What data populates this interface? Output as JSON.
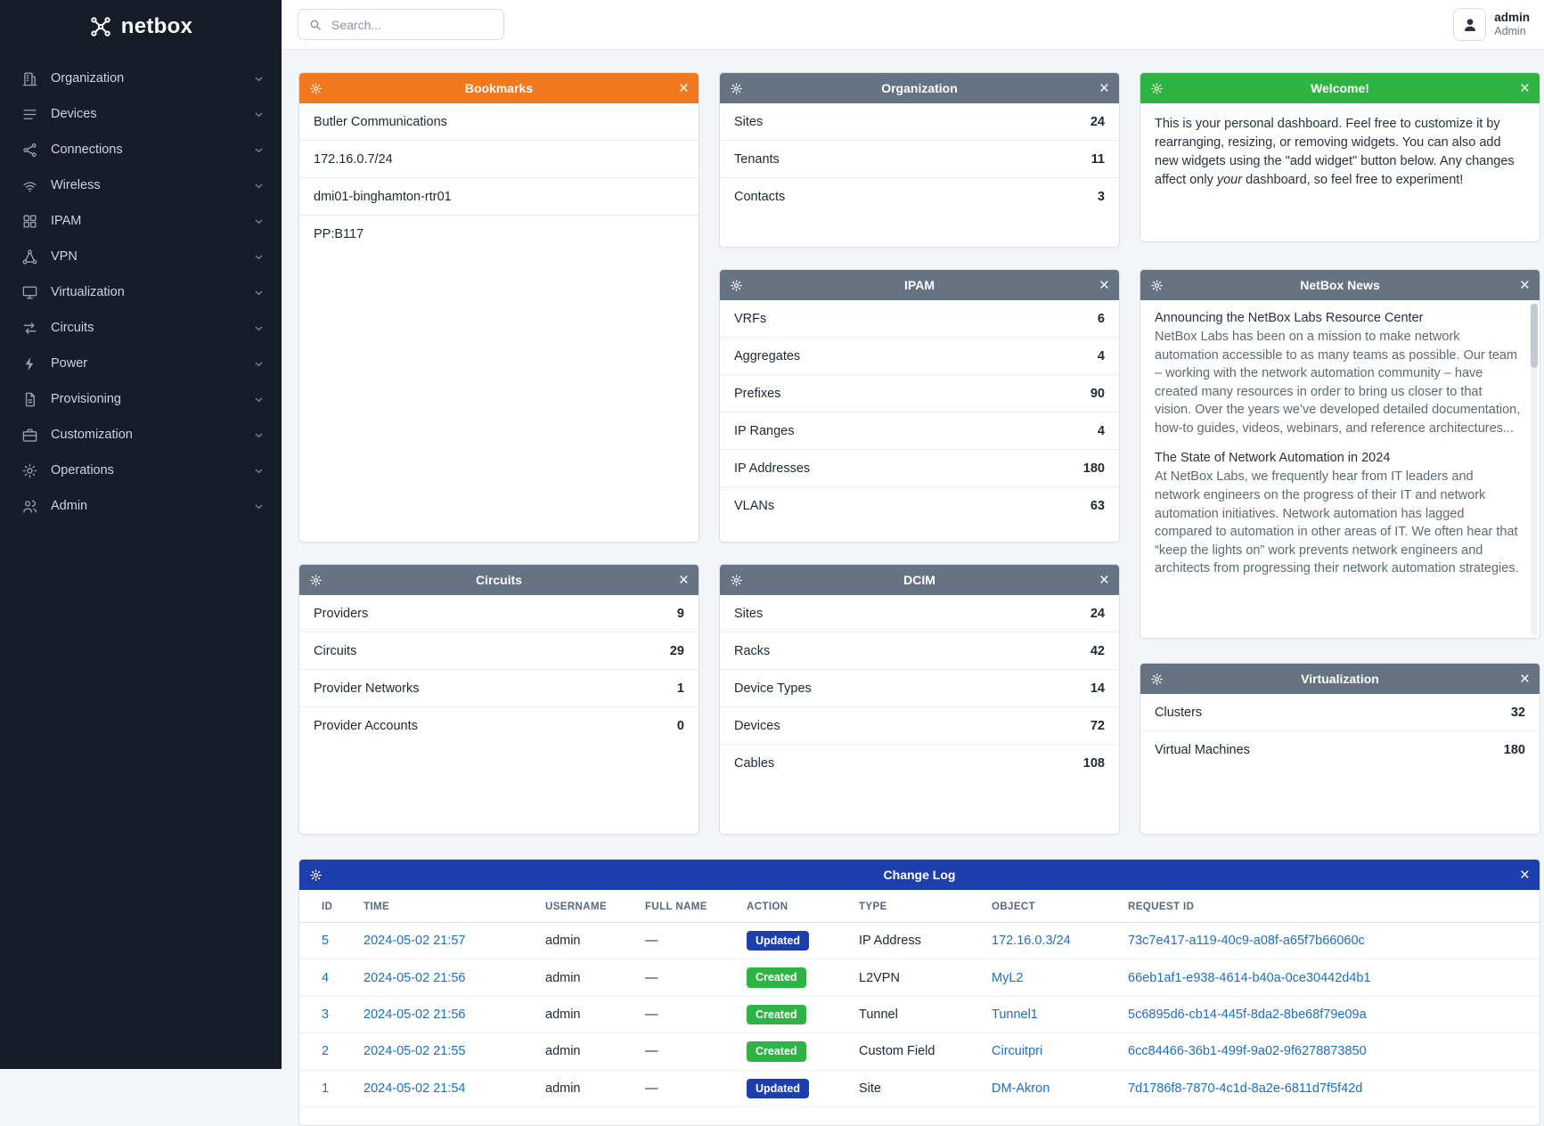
{
  "brand": {
    "name": "netbox"
  },
  "topbar": {
    "search_placeholder": "Search...",
    "user_name": "admin",
    "user_role": "Admin"
  },
  "sidebar": {
    "items": [
      {
        "label": "Organization",
        "icon": "building"
      },
      {
        "label": "Devices",
        "icon": "devices"
      },
      {
        "label": "Connections",
        "icon": "connections"
      },
      {
        "label": "Wireless",
        "icon": "wifi"
      },
      {
        "label": "IPAM",
        "icon": "grid"
      },
      {
        "label": "VPN",
        "icon": "network"
      },
      {
        "label": "Virtualization",
        "icon": "monitor"
      },
      {
        "label": "Circuits",
        "icon": "transfer"
      },
      {
        "label": "Power",
        "icon": "bolt"
      },
      {
        "label": "Provisioning",
        "icon": "document"
      },
      {
        "label": "Customization",
        "icon": "briefcase"
      },
      {
        "label": "Operations",
        "icon": "gear"
      },
      {
        "label": "Admin",
        "icon": "users"
      }
    ]
  },
  "colors": {
    "bookmarks_header": "#f0781e",
    "slate_header": "#667382",
    "welcome_header": "#2fb344",
    "changelog_header": "#1d3fae",
    "badge_updated": "#1d3fae",
    "badge_created": "#2fb344",
    "link": "#1a6fc4"
  },
  "widgets": {
    "bookmarks": {
      "title": "Bookmarks",
      "items": [
        "Butler Communications",
        "172.16.0.7/24",
        "dmi01-binghamton-rtr01",
        "PP:B117"
      ]
    },
    "organization": {
      "title": "Organization",
      "rows": [
        {
          "label": "Sites",
          "value": "24"
        },
        {
          "label": "Tenants",
          "value": "11"
        },
        {
          "label": "Contacts",
          "value": "3"
        }
      ]
    },
    "welcome": {
      "title": "Welcome!",
      "text_before": "This is your personal dashboard. Feel free to customize it by rearranging, resizing, or removing widgets. You can also add new widgets using the \"add widget\" button below. Any changes affect only ",
      "text_italic": "your",
      "text_after": " dashboard, so feel free to experiment!"
    },
    "ipam": {
      "title": "IPAM",
      "rows": [
        {
          "label": "VRFs",
          "value": "6"
        },
        {
          "label": "Aggregates",
          "value": "4"
        },
        {
          "label": "Prefixes",
          "value": "90"
        },
        {
          "label": "IP Ranges",
          "value": "4"
        },
        {
          "label": "IP Addresses",
          "value": "180"
        },
        {
          "label": "VLANs",
          "value": "63"
        }
      ]
    },
    "news": {
      "title": "NetBox News",
      "articles": [
        {
          "title": "Announcing the NetBox Labs Resource Center",
          "body": "NetBox Labs has been on a mission to make network automation accessible to as many teams as possible. Our team – working with the network automation community – have created many resources in order to bring us closer to that vision. Over the years we’ve developed detailed documentation, how-to guides, videos, webinars, and reference architectures..."
        },
        {
          "title": "The State of Network Automation in 2024",
          "body": "At NetBox Labs, we frequently hear from IT leaders and network engineers on the progress of their IT and network automation initiatives. Network automation has lagged compared to automation in other areas of IT. We often hear that “keep the lights on” work prevents network engineers and architects from progressing their network automation strategies."
        }
      ]
    },
    "circuits": {
      "title": "Circuits",
      "rows": [
        {
          "label": "Providers",
          "value": "9"
        },
        {
          "label": "Circuits",
          "value": "29"
        },
        {
          "label": "Provider Networks",
          "value": "1"
        },
        {
          "label": "Provider Accounts",
          "value": "0"
        }
      ]
    },
    "dcim": {
      "title": "DCIM",
      "rows": [
        {
          "label": "Sites",
          "value": "24"
        },
        {
          "label": "Racks",
          "value": "42"
        },
        {
          "label": "Device Types",
          "value": "14"
        },
        {
          "label": "Devices",
          "value": "72"
        },
        {
          "label": "Cables",
          "value": "108"
        }
      ]
    },
    "virtualization": {
      "title": "Virtualization",
      "rows": [
        {
          "label": "Clusters",
          "value": "32"
        },
        {
          "label": "Virtual Machines",
          "value": "180"
        }
      ]
    },
    "changelog": {
      "title": "Change Log",
      "columns": [
        "ID",
        "TIME",
        "USERNAME",
        "FULL NAME",
        "ACTION",
        "TYPE",
        "OBJECT",
        "REQUEST ID"
      ],
      "rows": [
        {
          "id": "5",
          "time": "2024-05-02 21:57",
          "username": "admin",
          "full_name": "—",
          "action": "Updated",
          "type": "IP Address",
          "object": "172.16.0.3/24",
          "request_id": "73c7e417-a119-40c9-a08f-a65f7b66060c"
        },
        {
          "id": "4",
          "time": "2024-05-02 21:56",
          "username": "admin",
          "full_name": "—",
          "action": "Created",
          "type": "L2VPN",
          "object": "MyL2",
          "request_id": "66eb1af1-e938-4614-b40a-0ce30442d4b1"
        },
        {
          "id": "3",
          "time": "2024-05-02 21:56",
          "username": "admin",
          "full_name": "—",
          "action": "Created",
          "type": "Tunnel",
          "object": "Tunnel1",
          "request_id": "5c6895d6-cb14-445f-8da2-8be68f79e09a"
        },
        {
          "id": "2",
          "time": "2024-05-02 21:55",
          "username": "admin",
          "full_name": "—",
          "action": "Created",
          "type": "Custom Field",
          "object": "Circuitpri",
          "request_id": "6cc84466-36b1-499f-9a02-9f6278873850"
        },
        {
          "id": "1",
          "time": "2024-05-02 21:54",
          "username": "admin",
          "full_name": "—",
          "action": "Updated",
          "type": "Site",
          "object": "DM-Akron",
          "request_id": "7d1786f8-7870-4c1d-8a2e-6811d7f5f42d"
        }
      ]
    }
  }
}
